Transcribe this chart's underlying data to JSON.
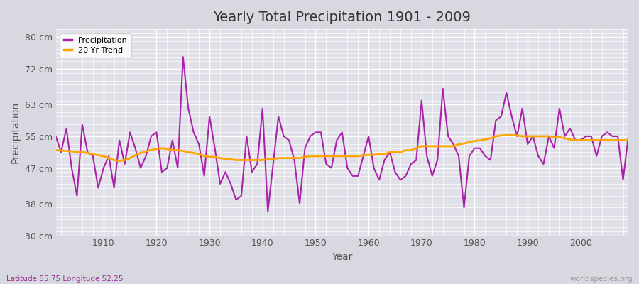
{
  "title": "Yearly Total Precipitation 1901 - 2009",
  "xlabel": "Year",
  "ylabel": "Precipitation",
  "subtitle_left": "Latitude 55.75 Longitude 52.25",
  "subtitle_right": "worldspecies.org",
  "fig_bg_color": "#d8d8e0",
  "plot_bg_color": "#e0e0e8",
  "precip_color": "#aa22aa",
  "trend_color": "#FFA500",
  "ylim": [
    30,
    82
  ],
  "yticks": [
    30,
    38,
    47,
    55,
    63,
    72,
    80
  ],
  "ytick_labels": [
    "30 cm",
    "38 cm",
    "47 cm",
    "55 cm",
    "63 cm",
    "72 cm",
    "80 cm"
  ],
  "xticks": [
    1910,
    1920,
    1930,
    1940,
    1950,
    1960,
    1970,
    1980,
    1990,
    2000
  ],
  "xlim": [
    1901,
    2009
  ],
  "years": [
    1901,
    1902,
    1903,
    1904,
    1905,
    1906,
    1907,
    1908,
    1909,
    1910,
    1911,
    1912,
    1913,
    1914,
    1915,
    1916,
    1917,
    1918,
    1919,
    1920,
    1921,
    1922,
    1923,
    1924,
    1925,
    1926,
    1927,
    1928,
    1929,
    1930,
    1931,
    1932,
    1933,
    1934,
    1935,
    1936,
    1937,
    1938,
    1939,
    1940,
    1941,
    1942,
    1943,
    1944,
    1945,
    1946,
    1947,
    1948,
    1949,
    1950,
    1951,
    1952,
    1953,
    1954,
    1955,
    1956,
    1957,
    1958,
    1959,
    1960,
    1961,
    1962,
    1963,
    1964,
    1965,
    1966,
    1967,
    1968,
    1969,
    1970,
    1971,
    1972,
    1973,
    1974,
    1975,
    1976,
    1977,
    1978,
    1979,
    1980,
    1981,
    1982,
    1983,
    1984,
    1985,
    1986,
    1987,
    1988,
    1989,
    1990,
    1991,
    1992,
    1993,
    1994,
    1995,
    1996,
    1997,
    1998,
    1999,
    2000,
    2001,
    2002,
    2003,
    2004,
    2005,
    2006,
    2007,
    2008,
    2009
  ],
  "precip": [
    55,
    51,
    57,
    47,
    40,
    58,
    51,
    50,
    42,
    47,
    50,
    42,
    54,
    48,
    56,
    52,
    47,
    50,
    55,
    56,
    46,
    47,
    54,
    47,
    75,
    62,
    56,
    53,
    45,
    60,
    52,
    43,
    46,
    43,
    39,
    40,
    55,
    46,
    48,
    62,
    36,
    48,
    60,
    55,
    54,
    49,
    38,
    52,
    55,
    56,
    56,
    48,
    47,
    54,
    56,
    47,
    45,
    45,
    50,
    55,
    47,
    44,
    49,
    51,
    46,
    44,
    45,
    48,
    49,
    64,
    50,
    45,
    49,
    67,
    55,
    53,
    50,
    37,
    50,
    52,
    52,
    50,
    49,
    59,
    60,
    66,
    60,
    55,
    62,
    53,
    55,
    50,
    48,
    55,
    52,
    62,
    55,
    57,
    54,
    54,
    55,
    55,
    50,
    55,
    56,
    55,
    55,
    44,
    55
  ],
  "trend": [
    51.5,
    51.4,
    51.3,
    51.2,
    51.1,
    51.0,
    50.8,
    50.5,
    50.2,
    50.0,
    49.5,
    49.0,
    48.8,
    49.0,
    49.5,
    50.2,
    50.8,
    51.2,
    51.6,
    51.8,
    52.0,
    51.8,
    51.5,
    51.5,
    51.3,
    51.0,
    50.8,
    50.5,
    50.0,
    49.8,
    49.8,
    49.5,
    49.3,
    49.2,
    49.0,
    49.0,
    49.0,
    49.0,
    49.0,
    49.0,
    49.2,
    49.3,
    49.5,
    49.5,
    49.5,
    49.5,
    49.5,
    49.8,
    50.0,
    50.0,
    50.0,
    50.0,
    50.0,
    50.0,
    50.0,
    50.0,
    50.0,
    50.0,
    50.2,
    50.3,
    50.3,
    50.5,
    50.5,
    51.0,
    51.0,
    51.0,
    51.5,
    51.5,
    52.0,
    52.5,
    52.5,
    52.5,
    52.5,
    52.5,
    52.5,
    52.5,
    53.0,
    53.2,
    53.5,
    53.8,
    54.0,
    54.2,
    54.5,
    55.0,
    55.2,
    55.3,
    55.3,
    55.2,
    55.0,
    55.0,
    55.0,
    55.0,
    55.0,
    55.0,
    54.8,
    54.8,
    54.5,
    54.2,
    54.0,
    54.0,
    54.0,
    54.0,
    54.0,
    54.0,
    54.0,
    54.0,
    54.0,
    54.0,
    54.0
  ],
  "title_fontsize": 14,
  "axis_label_fontsize": 10,
  "tick_fontsize": 9,
  "subtitle_fontsize": 7.5,
  "legend_fontsize": 8,
  "subtitle_left_color": "#993399",
  "subtitle_right_color": "#999999",
  "tick_color": "#555555",
  "title_color": "#333333",
  "grid_color": "#ffffff",
  "grid_lw_major": 1.0,
  "grid_lw_minor": 0.5,
  "precip_lw": 1.5,
  "trend_lw": 2.0
}
